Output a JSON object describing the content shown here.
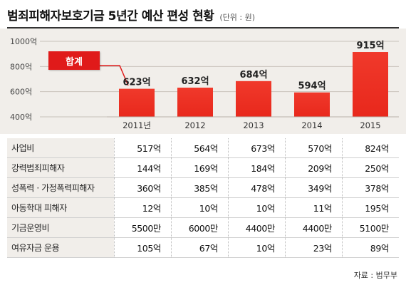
{
  "header": {
    "title": "범죄피해자보호기금 5년간 예산 편성 현황",
    "unit": "(단위 : 원)"
  },
  "callout": {
    "label": "합계"
  },
  "chart_data": {
    "type": "bar",
    "title": "범죄피해자보호기금 5년간 예산 편성 현황",
    "categories": [
      "2011년",
      "2012",
      "2013",
      "2014",
      "2015"
    ],
    "series": [
      {
        "values": [
          623,
          632,
          684,
          594,
          915
        ]
      }
    ],
    "data_labels": [
      "623억",
      "632억",
      "684억",
      "594억",
      "915억"
    ],
    "y_ticks": [
      "1000억",
      "800억",
      "600억",
      "400억"
    ],
    "y_tick_values": [
      1000,
      800,
      600,
      400
    ],
    "ylim": [
      400,
      1000
    ],
    "grid": true,
    "bar_color": "#e8281c"
  },
  "table": {
    "rows": [
      {
        "label": "사업비",
        "values": [
          "517억",
          "564억",
          "673억",
          "570억",
          "824억"
        ]
      },
      {
        "label": "강력범죄피해자",
        "values": [
          "144억",
          "169억",
          "184억",
          "209억",
          "250억"
        ]
      },
      {
        "label": "성폭력 · 가정폭력피해자",
        "values": [
          "360억",
          "385억",
          "478억",
          "349억",
          "378억"
        ]
      },
      {
        "label": "아동학대 피해자",
        "values": [
          "12억",
          "10억",
          "10억",
          "11억",
          "195억"
        ]
      },
      {
        "label": "기금운영비",
        "values": [
          "5500만",
          "6000만",
          "4400만",
          "4400만",
          "5100만"
        ]
      },
      {
        "label": "여유자금 운용",
        "values": [
          "105억",
          "67억",
          "10억",
          "23억",
          "89억"
        ]
      }
    ]
  },
  "source": "자료 : 법무부"
}
